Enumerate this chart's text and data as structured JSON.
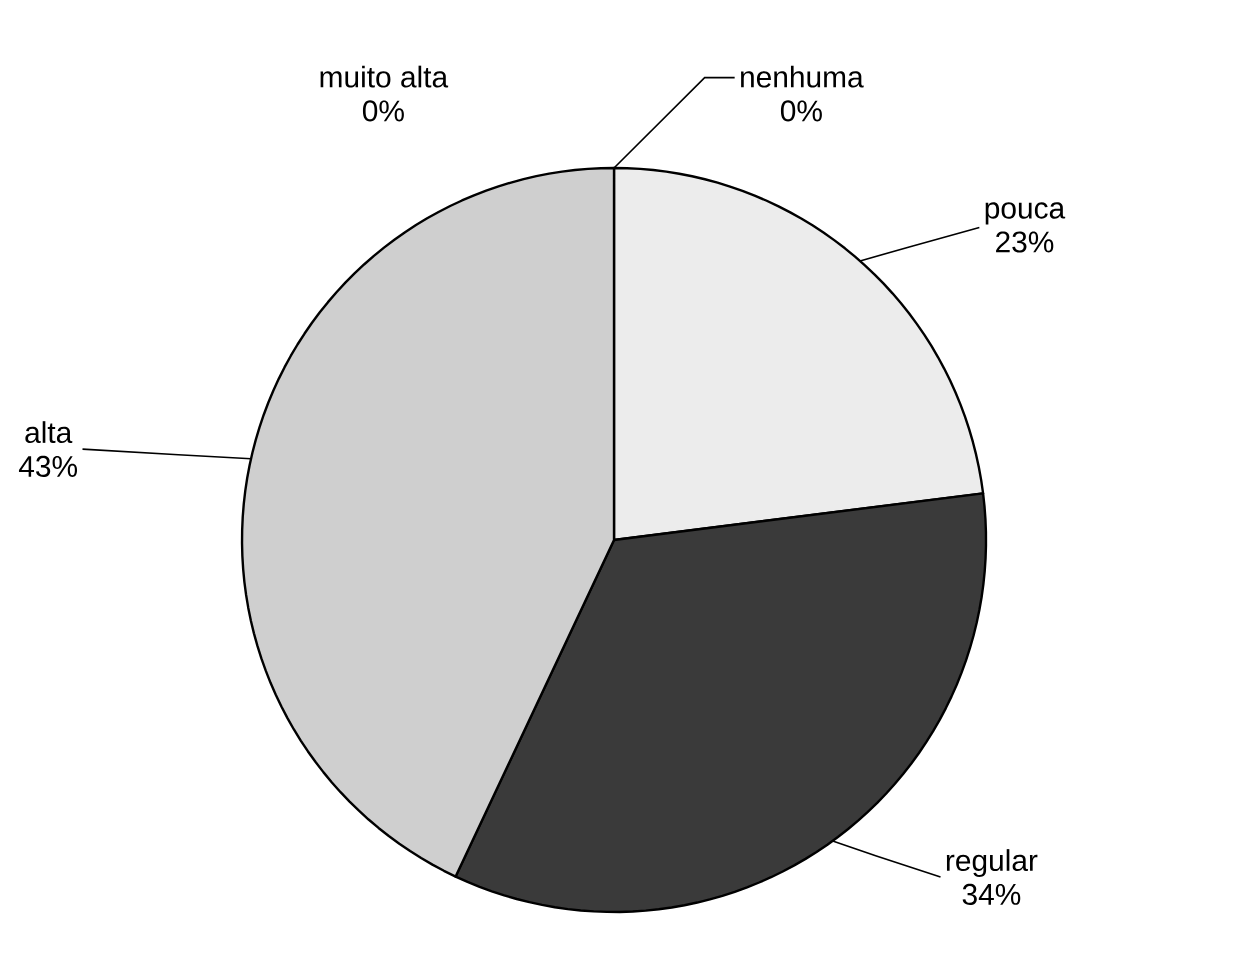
{
  "chart_data": {
    "type": "pie",
    "categories": [
      "nenhuma",
      "pouca",
      "regular",
      "alta",
      "muito alta"
    ],
    "values": [
      0,
      23,
      34,
      43,
      0
    ],
    "colors": [
      "#ffffff",
      "#ececec",
      "#3a3a3a",
      "#cfcfcf",
      "#ffffff"
    ],
    "value_labels": [
      "0%",
      "23%",
      "34%",
      "43%",
      "0%"
    ]
  }
}
